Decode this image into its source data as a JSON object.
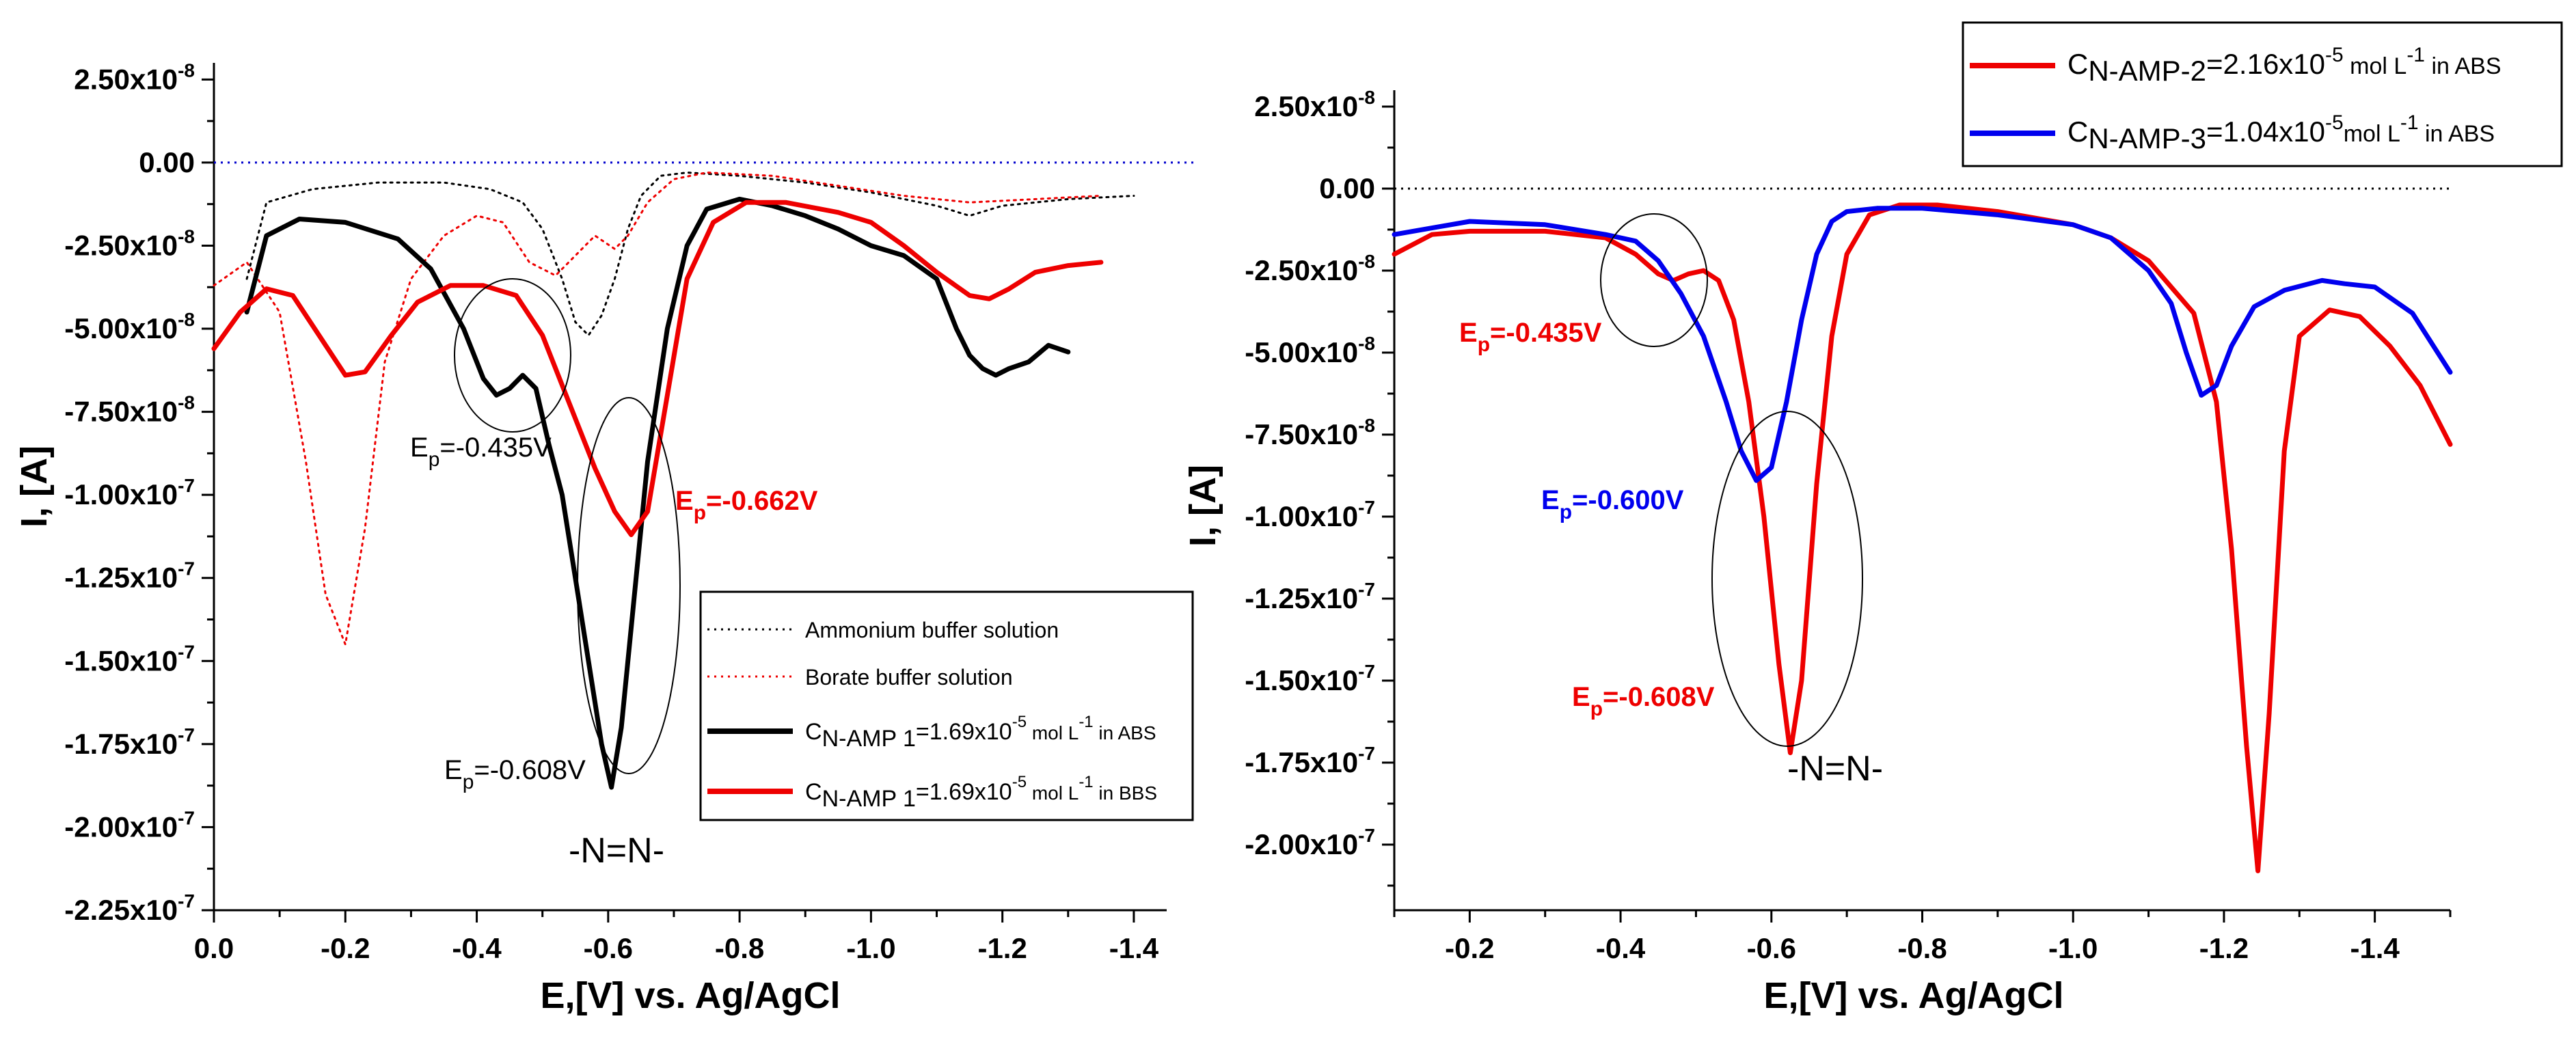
{
  "chart_data": [
    {
      "type": "line",
      "panel": "left",
      "xlabel": "E,[V] vs. Ag/AgCl",
      "ylabel": "I, [A]",
      "xlim": [
        0.0,
        -1.45
      ],
      "ylim": [
        -2.25e-07,
        3e-08
      ],
      "xticks": [
        {
          "v": 0.0,
          "label": "0.0"
        },
        {
          "v": -0.2,
          "label": "-0.2"
        },
        {
          "v": -0.4,
          "label": "-0.4"
        },
        {
          "v": -0.6,
          "label": "-0.6"
        },
        {
          "v": -0.8,
          "label": "-0.8"
        },
        {
          "v": -1.0,
          "label": "-1.0"
        },
        {
          "v": -1.2,
          "label": "-1.2"
        },
        {
          "v": -1.4,
          "label": "-1.4"
        }
      ],
      "yticks": [
        {
          "v": 2.5e-08,
          "m": "2.50x10",
          "e": "-8"
        },
        {
          "v": 0,
          "m": "0.00",
          "e": ""
        },
        {
          "v": -2.5e-08,
          "m": "-2.50x10",
          "e": "-8"
        },
        {
          "v": -5e-08,
          "m": "-5.00x10",
          "e": "-8"
        },
        {
          "v": -7.5e-08,
          "m": "-7.50x10",
          "e": "-8"
        },
        {
          "v": -1e-07,
          "m": "-1.00x10",
          "e": "-7"
        },
        {
          "v": -1.25e-07,
          "m": "-1.25x10",
          "e": "-7"
        },
        {
          "v": -1.5e-07,
          "m": "-1.50x10",
          "e": "-7"
        },
        {
          "v": -1.75e-07,
          "m": "-1.75x10",
          "e": "-7"
        },
        {
          "v": -2e-07,
          "m": "-2.00x10",
          "e": "-7"
        },
        {
          "v": -2.25e-07,
          "m": "-2.25x10",
          "e": "-7"
        }
      ],
      "zero_line": {
        "y": 0,
        "color": "#0000cc",
        "style": "dotted"
      },
      "series": [
        {
          "name": "Ammonium buffer solution",
          "color": "#000000",
          "style": "dotted",
          "width": 3,
          "x": [
            -0.05,
            -0.08,
            -0.15,
            -0.25,
            -0.35,
            -0.42,
            -0.47,
            -0.5,
            -0.53,
            -0.55,
            -0.57,
            -0.59,
            -0.61,
            -0.63,
            -0.65,
            -0.68,
            -0.72,
            -0.8,
            -0.9,
            -1.0,
            -1.1,
            -1.15,
            -1.2,
            -1.3,
            -1.4
          ],
          "y": [
            -3.5e-08,
            -1.2e-08,
            -8e-09,
            -6e-09,
            -6e-09,
            -8e-09,
            -1.2e-08,
            -2e-08,
            -3.5e-08,
            -4.8e-08,
            -5.2e-08,
            -4.6e-08,
            -3.5e-08,
            -2e-08,
            -1e-08,
            -4e-09,
            -3e-09,
            -4e-09,
            -6e-09,
            -9e-09,
            -1.3e-08,
            -1.6e-08,
            -1.3e-08,
            -1.1e-08,
            -1e-08
          ]
        },
        {
          "name": "Borate buffer solution",
          "color": "#ee0000",
          "style": "dotted",
          "width": 3,
          "x": [
            -0.0,
            -0.05,
            -0.1,
            -0.14,
            -0.17,
            -0.2,
            -0.23,
            -0.26,
            -0.3,
            -0.35,
            -0.4,
            -0.44,
            -0.48,
            -0.52,
            -0.55,
            -0.58,
            -0.61,
            -0.63,
            -0.66,
            -0.7,
            -0.75,
            -0.85,
            -0.95,
            -1.05,
            -1.15,
            -1.25,
            -1.35
          ],
          "y": [
            -3.7e-08,
            -3e-08,
            -4.5e-08,
            -9e-08,
            -1.3e-07,
            -1.45e-07,
            -1.1e-07,
            -6e-08,
            -3.5e-08,
            -2.2e-08,
            -1.6e-08,
            -1.8e-08,
            -3e-08,
            -3.4e-08,
            -2.8e-08,
            -2.2e-08,
            -2.6e-08,
            -2.2e-08,
            -1.2e-08,
            -5e-09,
            -3e-09,
            -4e-09,
            -7e-09,
            -1e-08,
            -1.2e-08,
            -1.1e-08,
            -1e-08
          ]
        },
        {
          "name": "C_N-AMP 1=1.69x10^-5 mol L^-1 in ABS",
          "color": "#000000",
          "style": "solid",
          "width": 7,
          "x": [
            -0.05,
            -0.08,
            -0.13,
            -0.2,
            -0.28,
            -0.33,
            -0.38,
            -0.41,
            -0.43,
            -0.45,
            -0.47,
            -0.49,
            -0.51,
            -0.53,
            -0.55,
            -0.57,
            -0.59,
            -0.605,
            -0.62,
            -0.64,
            -0.66,
            -0.69,
            -0.72,
            -0.75,
            -0.8,
            -0.85,
            -0.9,
            -0.95,
            -1.0,
            -1.05,
            -1.1,
            -1.13,
            -1.15,
            -1.17,
            -1.19,
            -1.21,
            -1.24,
            -1.27,
            -1.3
          ],
          "y": [
            -4.5e-08,
            -2.2e-08,
            -1.7e-08,
            -1.8e-08,
            -2.3e-08,
            -3.2e-08,
            -5e-08,
            -6.5e-08,
            -7e-08,
            -6.8e-08,
            -6.4e-08,
            -6.8e-08,
            -8.5e-08,
            -1e-07,
            -1.25e-07,
            -1.5e-07,
            -1.75e-07,
            -1.88e-07,
            -1.7e-07,
            -1.3e-07,
            -9e-08,
            -5e-08,
            -2.5e-08,
            -1.4e-08,
            -1.1e-08,
            -1.3e-08,
            -1.6e-08,
            -2e-08,
            -2.5e-08,
            -2.8e-08,
            -3.5e-08,
            -5e-08,
            -5.8e-08,
            -6.2e-08,
            -6.4e-08,
            -6.2e-08,
            -6e-08,
            -5.5e-08,
            -5.7e-08
          ]
        },
        {
          "name": "C_N-AMP 1=1.69x10^-5 mol L^-1 in BBS",
          "color": "#ee0000",
          "style": "solid",
          "width": 7,
          "x": [
            0.0,
            -0.04,
            -0.08,
            -0.12,
            -0.16,
            -0.2,
            -0.23,
            -0.27,
            -0.31,
            -0.36,
            -0.41,
            -0.46,
            -0.5,
            -0.54,
            -0.58,
            -0.61,
            -0.635,
            -0.66,
            -0.69,
            -0.72,
            -0.76,
            -0.81,
            -0.87,
            -0.95,
            -1.0,
            -1.05,
            -1.1,
            -1.15,
            -1.18,
            -1.21,
            -1.25,
            -1.3,
            -1.35
          ],
          "y": [
            -5.6e-08,
            -4.5e-08,
            -3.8e-08,
            -4e-08,
            -5.2e-08,
            -6.4e-08,
            -6.3e-08,
            -5.2e-08,
            -4.2e-08,
            -3.7e-08,
            -3.7e-08,
            -4e-08,
            -5.2e-08,
            -7.2e-08,
            -9.2e-08,
            -1.05e-07,
            -1.12e-07,
            -1.05e-07,
            -7e-08,
            -3.5e-08,
            -1.8e-08,
            -1.2e-08,
            -1.2e-08,
            -1.5e-08,
            -1.8e-08,
            -2.5e-08,
            -3.3e-08,
            -4e-08,
            -4.1e-08,
            -3.8e-08,
            -3.3e-08,
            -3.1e-08,
            -3e-08
          ]
        }
      ],
      "annotations": {
        "ep_435": {
          "base": "E",
          "sub": "p",
          "rest": "=-0.435V",
          "color": "#000000"
        },
        "ep_662": {
          "base": "E",
          "sub": "p",
          "rest": "=-0.662V",
          "color": "#ee0000"
        },
        "ep_608": {
          "base": "E",
          "sub": "p",
          "rest": "=-0.608V",
          "color": "#000000"
        },
        "azo": "-N=N-"
      },
      "legend": {
        "position": "bottom-right",
        "items": [
          {
            "color": "#000000",
            "style": "dotted",
            "text": "Ammonium buffer solution"
          },
          {
            "color": "#ee0000",
            "style": "dotted",
            "text": "Borate buffer solution"
          },
          {
            "color": "#000000",
            "style": "solid",
            "c": "C",
            "sub": "N-AMP 1",
            "mid": "=1.69x10",
            "sup": "-5",
            "unit": " mol L",
            "sup2": "-1",
            "tail": " in ABS"
          },
          {
            "color": "#ee0000",
            "style": "solid",
            "c": "C",
            "sub": "N-AMP 1",
            "mid": "=1.69x10",
            "sup": "-5",
            "unit": " mol L",
            "sup2": "-1",
            "tail": " in BBS"
          }
        ]
      }
    },
    {
      "type": "line",
      "panel": "right",
      "xlabel": "E,[V] vs. Ag/AgCl",
      "ylabel": "I, [A]",
      "xlim": [
        -0.1,
        -1.5
      ],
      "ylim": [
        -2.2e-07,
        3e-08
      ],
      "xticks": [
        {
          "v": -0.2,
          "label": "-0.2"
        },
        {
          "v": -0.4,
          "label": "-0.4"
        },
        {
          "v": -0.6,
          "label": "-0.6"
        },
        {
          "v": -0.8,
          "label": "-0.8"
        },
        {
          "v": -1.0,
          "label": "-1.0"
        },
        {
          "v": -1.2,
          "label": "-1.2"
        },
        {
          "v": -1.4,
          "label": "-1.4"
        }
      ],
      "yticks": [
        {
          "v": 2.5e-08,
          "m": "2.50x10",
          "e": "-8"
        },
        {
          "v": 0,
          "m": "0.00",
          "e": ""
        },
        {
          "v": -2.5e-08,
          "m": "-2.50x10",
          "e": "-8"
        },
        {
          "v": -5e-08,
          "m": "-5.00x10",
          "e": "-8"
        },
        {
          "v": -7.5e-08,
          "m": "-7.50x10",
          "e": "-8"
        },
        {
          "v": -1e-07,
          "m": "-1.00x10",
          "e": "-7"
        },
        {
          "v": -1.25e-07,
          "m": "-1.25x10",
          "e": "-7"
        },
        {
          "v": -1.5e-07,
          "m": "-1.50x10",
          "e": "-7"
        },
        {
          "v": -1.75e-07,
          "m": "-1.75x10",
          "e": "-7"
        },
        {
          "v": -2e-07,
          "m": "-2.00x10",
          "e": "-7"
        }
      ],
      "zero_line": {
        "y": 0,
        "color": "#000000",
        "style": "dotted"
      },
      "series": [
        {
          "name": "C_N-AMP-2=2.16x10^-5 mol L^-1 in ABS",
          "color": "#ee0000",
          "style": "solid",
          "width": 7,
          "x": [
            -0.1,
            -0.15,
            -0.2,
            -0.3,
            -0.38,
            -0.42,
            -0.45,
            -0.47,
            -0.49,
            -0.51,
            -0.53,
            -0.55,
            -0.57,
            -0.59,
            -0.61,
            -0.625,
            -0.64,
            -0.66,
            -0.68,
            -0.7,
            -0.73,
            -0.77,
            -0.82,
            -0.9,
            -1.0,
            -1.05,
            -1.1,
            -1.13,
            -1.16,
            -1.19,
            -1.21,
            -1.23,
            -1.245,
            -1.26,
            -1.28,
            -1.3,
            -1.34,
            -1.38,
            -1.42,
            -1.46,
            -1.5
          ],
          "y": [
            -2e-08,
            -1.4e-08,
            -1.3e-08,
            -1.3e-08,
            -1.5e-08,
            -2e-08,
            -2.6e-08,
            -2.8e-08,
            -2.6e-08,
            -2.5e-08,
            -2.8e-08,
            -4e-08,
            -6.5e-08,
            -1e-07,
            -1.45e-07,
            -1.72e-07,
            -1.5e-07,
            -9e-08,
            -4.5e-08,
            -2e-08,
            -8e-09,
            -5e-09,
            -5e-09,
            -7e-09,
            -1.1e-08,
            -1.5e-08,
            -2.2e-08,
            -3e-08,
            -3.8e-08,
            -6.5e-08,
            -1.1e-07,
            -1.7e-07,
            -2.08e-07,
            -1.6e-07,
            -8e-08,
            -4.5e-08,
            -3.7e-08,
            -3.9e-08,
            -4.8e-08,
            -6e-08,
            -7.8e-08
          ]
        },
        {
          "name": "C_N-AMP-3=1.04x10^-5 mol L^-1 in ABS",
          "color": "#0000ee",
          "style": "solid",
          "width": 7,
          "x": [
            -0.1,
            -0.15,
            -0.2,
            -0.3,
            -0.38,
            -0.42,
            -0.45,
            -0.48,
            -0.51,
            -0.54,
            -0.56,
            -0.58,
            -0.6,
            -0.62,
            -0.64,
            -0.66,
            -0.68,
            -0.7,
            -0.74,
            -0.8,
            -0.9,
            -1.0,
            -1.05,
            -1.1,
            -1.13,
            -1.15,
            -1.17,
            -1.19,
            -1.21,
            -1.24,
            -1.28,
            -1.33,
            -1.36,
            -1.4,
            -1.45,
            -1.5
          ],
          "y": [
            -1.4e-08,
            -1.2e-08,
            -1e-08,
            -1.1e-08,
            -1.4e-08,
            -1.6e-08,
            -2.2e-08,
            -3.2e-08,
            -4.5e-08,
            -6.5e-08,
            -8e-08,
            -8.9e-08,
            -8.5e-08,
            -6.5e-08,
            -4e-08,
            -2e-08,
            -1e-08,
            -7e-09,
            -6e-09,
            -6e-09,
            -8e-09,
            -1.1e-08,
            -1.5e-08,
            -2.5e-08,
            -3.5e-08,
            -5e-08,
            -6.3e-08,
            -6e-08,
            -4.8e-08,
            -3.6e-08,
            -3.1e-08,
            -2.8e-08,
            -2.9e-08,
            -3e-08,
            -3.8e-08,
            -5.6e-08
          ]
        }
      ],
      "annotations": {
        "ep_435": {
          "base": "E",
          "sub": "p",
          "rest": "=-0.435V",
          "color": "#ee0000"
        },
        "ep_600": {
          "base": "E",
          "sub": "p",
          "rest": "=-0.600V",
          "color": "#0000ee"
        },
        "ep_608": {
          "base": "E",
          "sub": "p",
          "rest": "=-0.608V",
          "color": "#ee0000"
        },
        "azo": "-N=N-"
      },
      "legend": {
        "position": "top-right",
        "items": [
          {
            "color": "#ee0000",
            "style": "solid",
            "c": "C",
            "sub": "N-AMP-2",
            "mid": "=2.16x10",
            "sup": "-5",
            "unit": " mol L",
            "sup2": "-1",
            "tail": " in ABS"
          },
          {
            "color": "#0000ee",
            "style": "solid",
            "c": "C",
            "sub": "N-AMP-3",
            "mid": "=1.04x10",
            "sup": "-5",
            "unit": "mol L",
            "sup2": "-1",
            "tail": " in ABS"
          }
        ]
      }
    }
  ]
}
